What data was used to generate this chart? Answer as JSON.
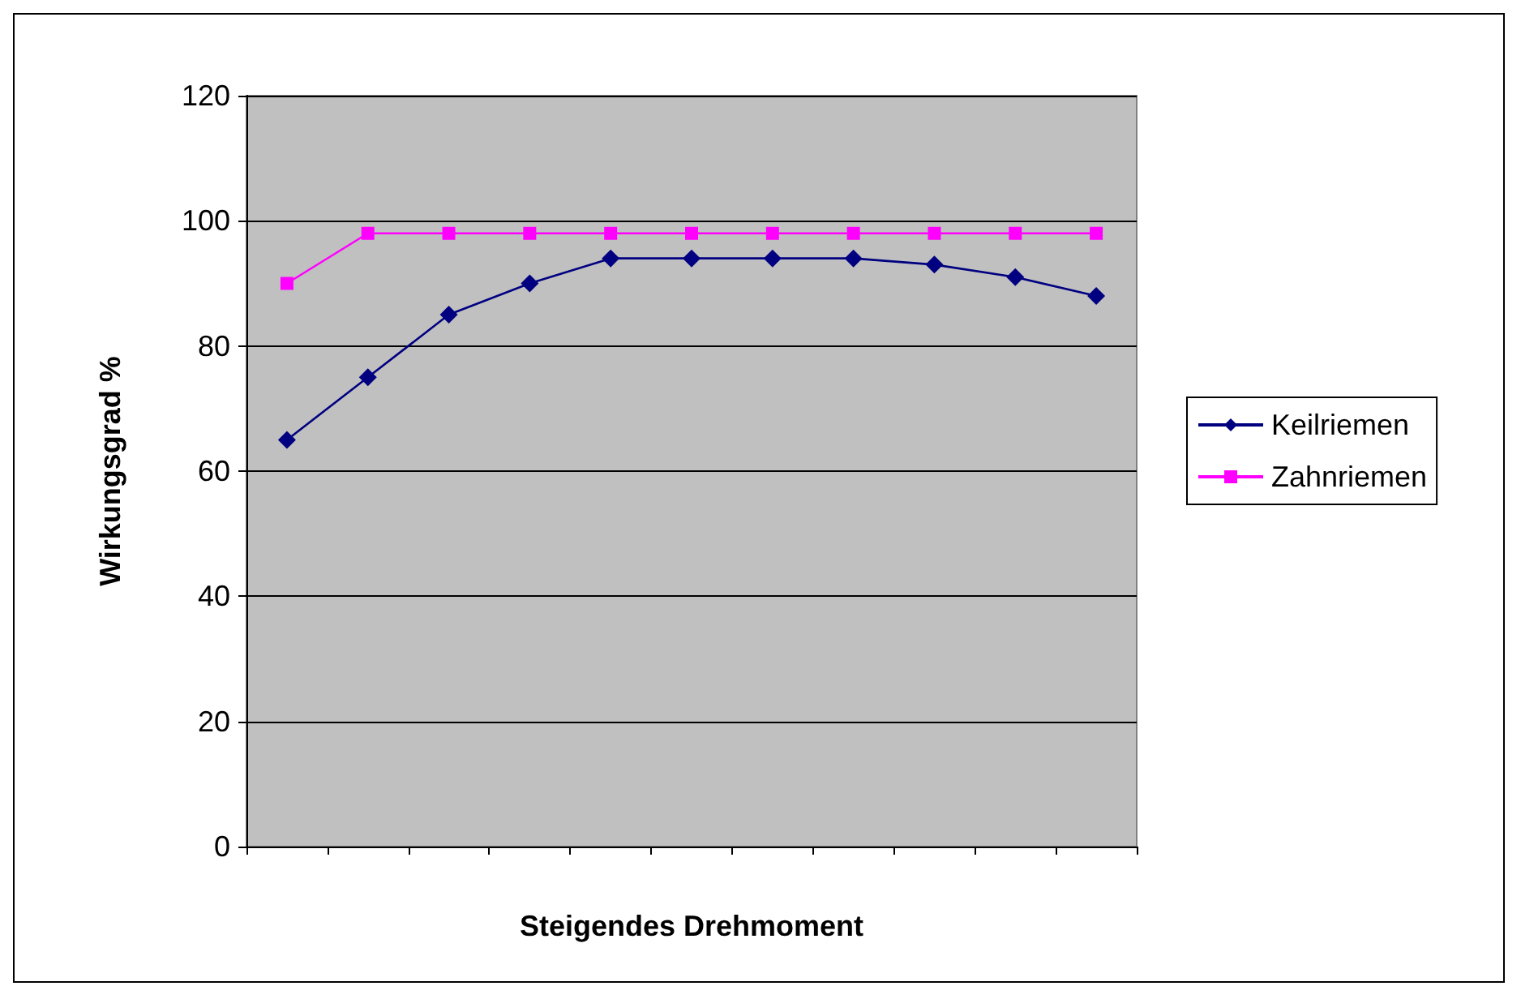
{
  "chart_data": {
    "type": "line",
    "xlabel": "Steigendes Drehmoment",
    "ylabel": "Wirkungsgrad %",
    "categories": [
      null,
      null,
      null,
      null,
      null,
      null,
      null,
      null,
      null,
      null,
      null
    ],
    "series": [
      {
        "name": "Keilriemen",
        "color": "#000080",
        "marker": "diamond",
        "values": [
          65,
          75,
          85,
          90,
          94,
          94,
          94,
          94,
          93,
          91,
          88
        ]
      },
      {
        "name": "Zahnriemen",
        "color": "#ff00ff",
        "marker": "square",
        "values": [
          90,
          98,
          98,
          98,
          98,
          98,
          98,
          98,
          98,
          98,
          98
        ]
      }
    ],
    "ylim": [
      0,
      120
    ],
    "yticks": [
      0,
      20,
      40,
      60,
      80,
      100,
      120
    ],
    "grid": "y",
    "legend": "right",
    "line_style": "solid"
  }
}
